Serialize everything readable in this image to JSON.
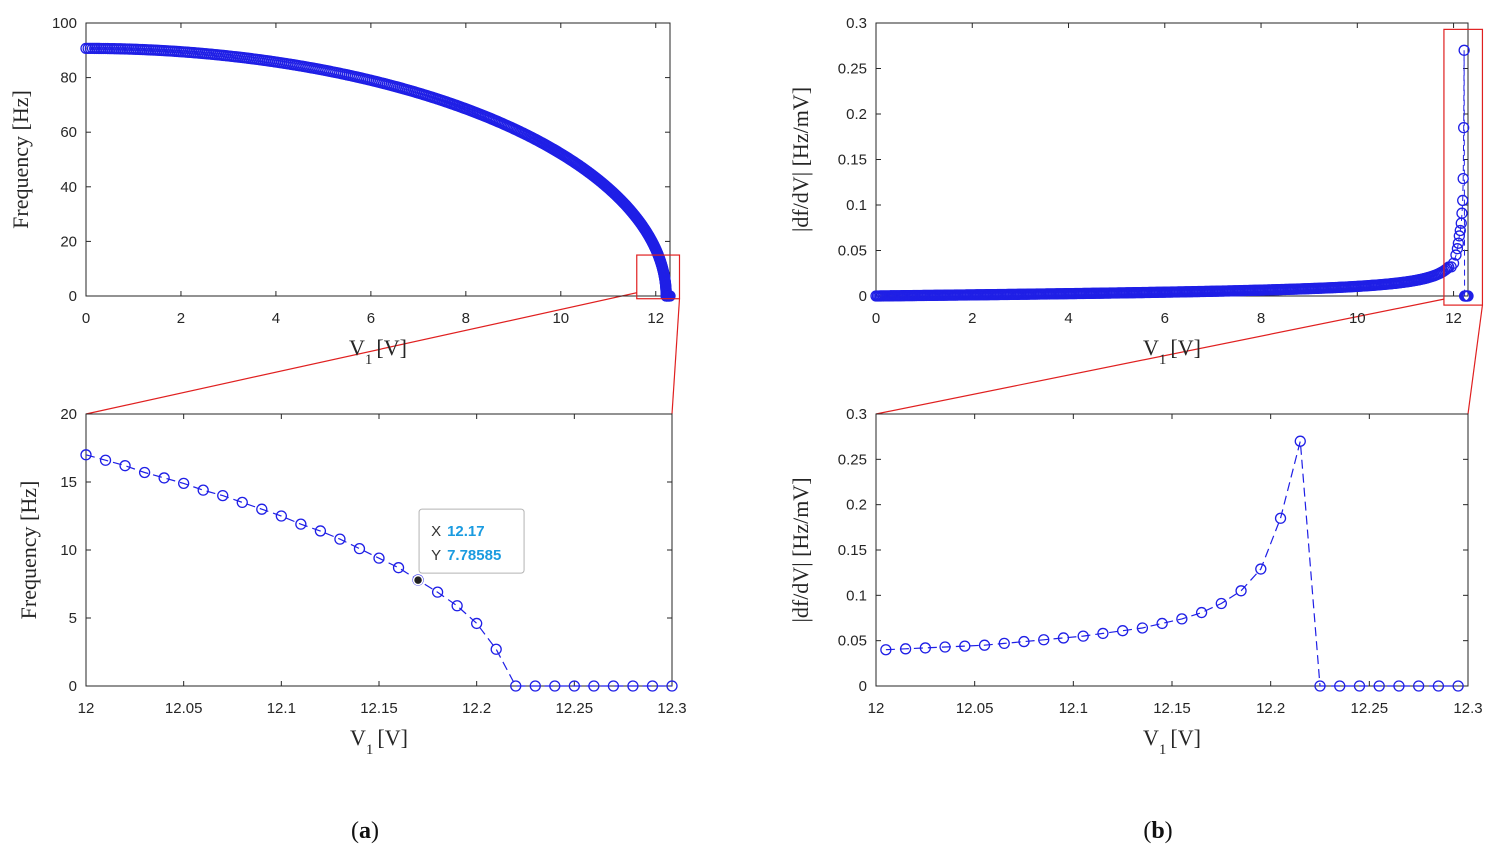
{
  "colors": {
    "series": "#1f1fe6",
    "zoom_box": "#e02020",
    "axes": "#262626",
    "tip_value": "#1a9be0"
  },
  "chart_data": [
    {
      "id": "a_top",
      "type": "scatter",
      "xlabel": "V",
      "xlabel_sub": "1",
      "xlabel_unit": "[V]",
      "ylabel": "Frequency [Hz]",
      "xlim": [
        0,
        12.3
      ],
      "ylim": [
        0,
        100
      ],
      "xticks": [
        0,
        2,
        4,
        6,
        8,
        10,
        12
      ],
      "xtick_labels": [
        "0",
        "2",
        "4",
        "6",
        "8",
        "10",
        "12"
      ],
      "yticks": [
        0,
        20,
        40,
        60,
        80,
        100
      ],
      "ytick_labels": [
        "0",
        "20",
        "40",
        "60",
        "80",
        "100"
      ],
      "series": [
        {
          "name": "frequency",
          "model": "f = 90.7*sqrt(1-(V/12.22)^2)",
          "v_max": 12.22,
          "f0": 90.7,
          "v_end": 12.3
        }
      ],
      "zoom_box": {
        "x": [
          11.6,
          12.5
        ],
        "y": [
          -1,
          15
        ]
      }
    },
    {
      "id": "b_top",
      "type": "scatter",
      "xlabel": "V",
      "xlabel_sub": "1",
      "xlabel_unit": "[V]",
      "ylabel": "|df/dV| [Hz/mV]",
      "xlim": [
        0,
        12.3
      ],
      "ylim": [
        0,
        0.3
      ],
      "xticks": [
        0,
        2,
        4,
        6,
        8,
        10,
        12
      ],
      "xtick_labels": [
        "0",
        "2",
        "4",
        "6",
        "8",
        "10",
        "12"
      ],
      "yticks": [
        0,
        0.05,
        0.1,
        0.15,
        0.2,
        0.25,
        0.3
      ],
      "ytick_labels": [
        "0",
        "0.05",
        "0.1",
        "0.15",
        "0.2",
        "0.25",
        "0.3"
      ],
      "series": [
        {
          "name": "sensitivity",
          "model": "|df/dV| derivative of frequency",
          "v_max": 12.22,
          "f0": 90.7
        }
      ],
      "zoom_box": {
        "x": [
          11.8,
          12.6
        ],
        "y": [
          -0.01,
          0.293
        ]
      }
    },
    {
      "id": "a_zoom",
      "type": "line",
      "xlabel": "V",
      "xlabel_sub": "1",
      "xlabel_unit": "[V]",
      "ylabel": "Frequency [Hz]",
      "xlim": [
        12,
        12.3
      ],
      "ylim": [
        0,
        20
      ],
      "xticks": [
        12,
        12.05,
        12.1,
        12.15,
        12.2,
        12.25,
        12.3
      ],
      "xtick_labels": [
        "12",
        "12.05",
        "12.1",
        "12.15",
        "12.2",
        "12.25",
        "12.3"
      ],
      "yticks": [
        0,
        5,
        10,
        15,
        20
      ],
      "ytick_labels": [
        "0",
        "5",
        "10",
        "15",
        "20"
      ],
      "x": [
        12,
        12.01,
        12.02,
        12.03,
        12.04,
        12.05,
        12.06,
        12.07,
        12.08,
        12.09,
        12.1,
        12.11,
        12.12,
        12.13,
        12.14,
        12.15,
        12.16,
        12.17,
        12.18,
        12.19,
        12.2,
        12.21,
        12.22,
        12.23,
        12.24,
        12.25,
        12.26,
        12.27,
        12.28,
        12.29,
        12.3
      ],
      "y": [
        17.0,
        16.6,
        16.2,
        15.7,
        15.3,
        14.9,
        14.4,
        14.0,
        13.5,
        13.0,
        12.5,
        11.9,
        11.4,
        10.8,
        10.1,
        9.4,
        8.7,
        7.79,
        6.9,
        5.9,
        4.6,
        2.7,
        0,
        0,
        0,
        0,
        0,
        0,
        0,
        0,
        0
      ],
      "datatip": {
        "x_label": "X",
        "x_value": "12.17",
        "y_label": "Y",
        "y_value": "7.78585",
        "x": 12.17,
        "y": 7.78585
      }
    },
    {
      "id": "b_zoom",
      "type": "line",
      "xlabel": "V",
      "xlabel_sub": "1",
      "xlabel_unit": "[V]",
      "ylabel": "|df/dV| [Hz/mV]",
      "xlim": [
        12,
        12.3
      ],
      "ylim": [
        0,
        0.3
      ],
      "xticks": [
        12,
        12.05,
        12.1,
        12.15,
        12.2,
        12.25,
        12.3
      ],
      "xtick_labels": [
        "12",
        "12.05",
        "12.1",
        "12.15",
        "12.2",
        "12.25",
        "12.3"
      ],
      "yticks": [
        0,
        0.05,
        0.1,
        0.15,
        0.2,
        0.25,
        0.3
      ],
      "ytick_labels": [
        "0",
        "0.05",
        "0.1",
        "0.15",
        "0.2",
        "0.25",
        "0.3"
      ],
      "x": [
        12.005,
        12.015,
        12.025,
        12.035,
        12.045,
        12.055,
        12.065,
        12.075,
        12.085,
        12.095,
        12.105,
        12.115,
        12.125,
        12.135,
        12.145,
        12.155,
        12.165,
        12.175,
        12.185,
        12.195,
        12.205,
        12.215,
        12.225,
        12.235,
        12.245,
        12.255,
        12.265,
        12.275,
        12.285,
        12.295
      ],
      "y": [
        0.04,
        0.041,
        0.042,
        0.043,
        0.044,
        0.045,
        0.047,
        0.049,
        0.051,
        0.053,
        0.055,
        0.058,
        0.061,
        0.064,
        0.069,
        0.074,
        0.081,
        0.091,
        0.105,
        0.129,
        0.185,
        0.27,
        0,
        0,
        0,
        0,
        0,
        0,
        0,
        0
      ]
    }
  ],
  "captions": {
    "a": "(a)",
    "b": "(b)"
  },
  "caption_letters": {
    "a": "a",
    "b": "b"
  }
}
